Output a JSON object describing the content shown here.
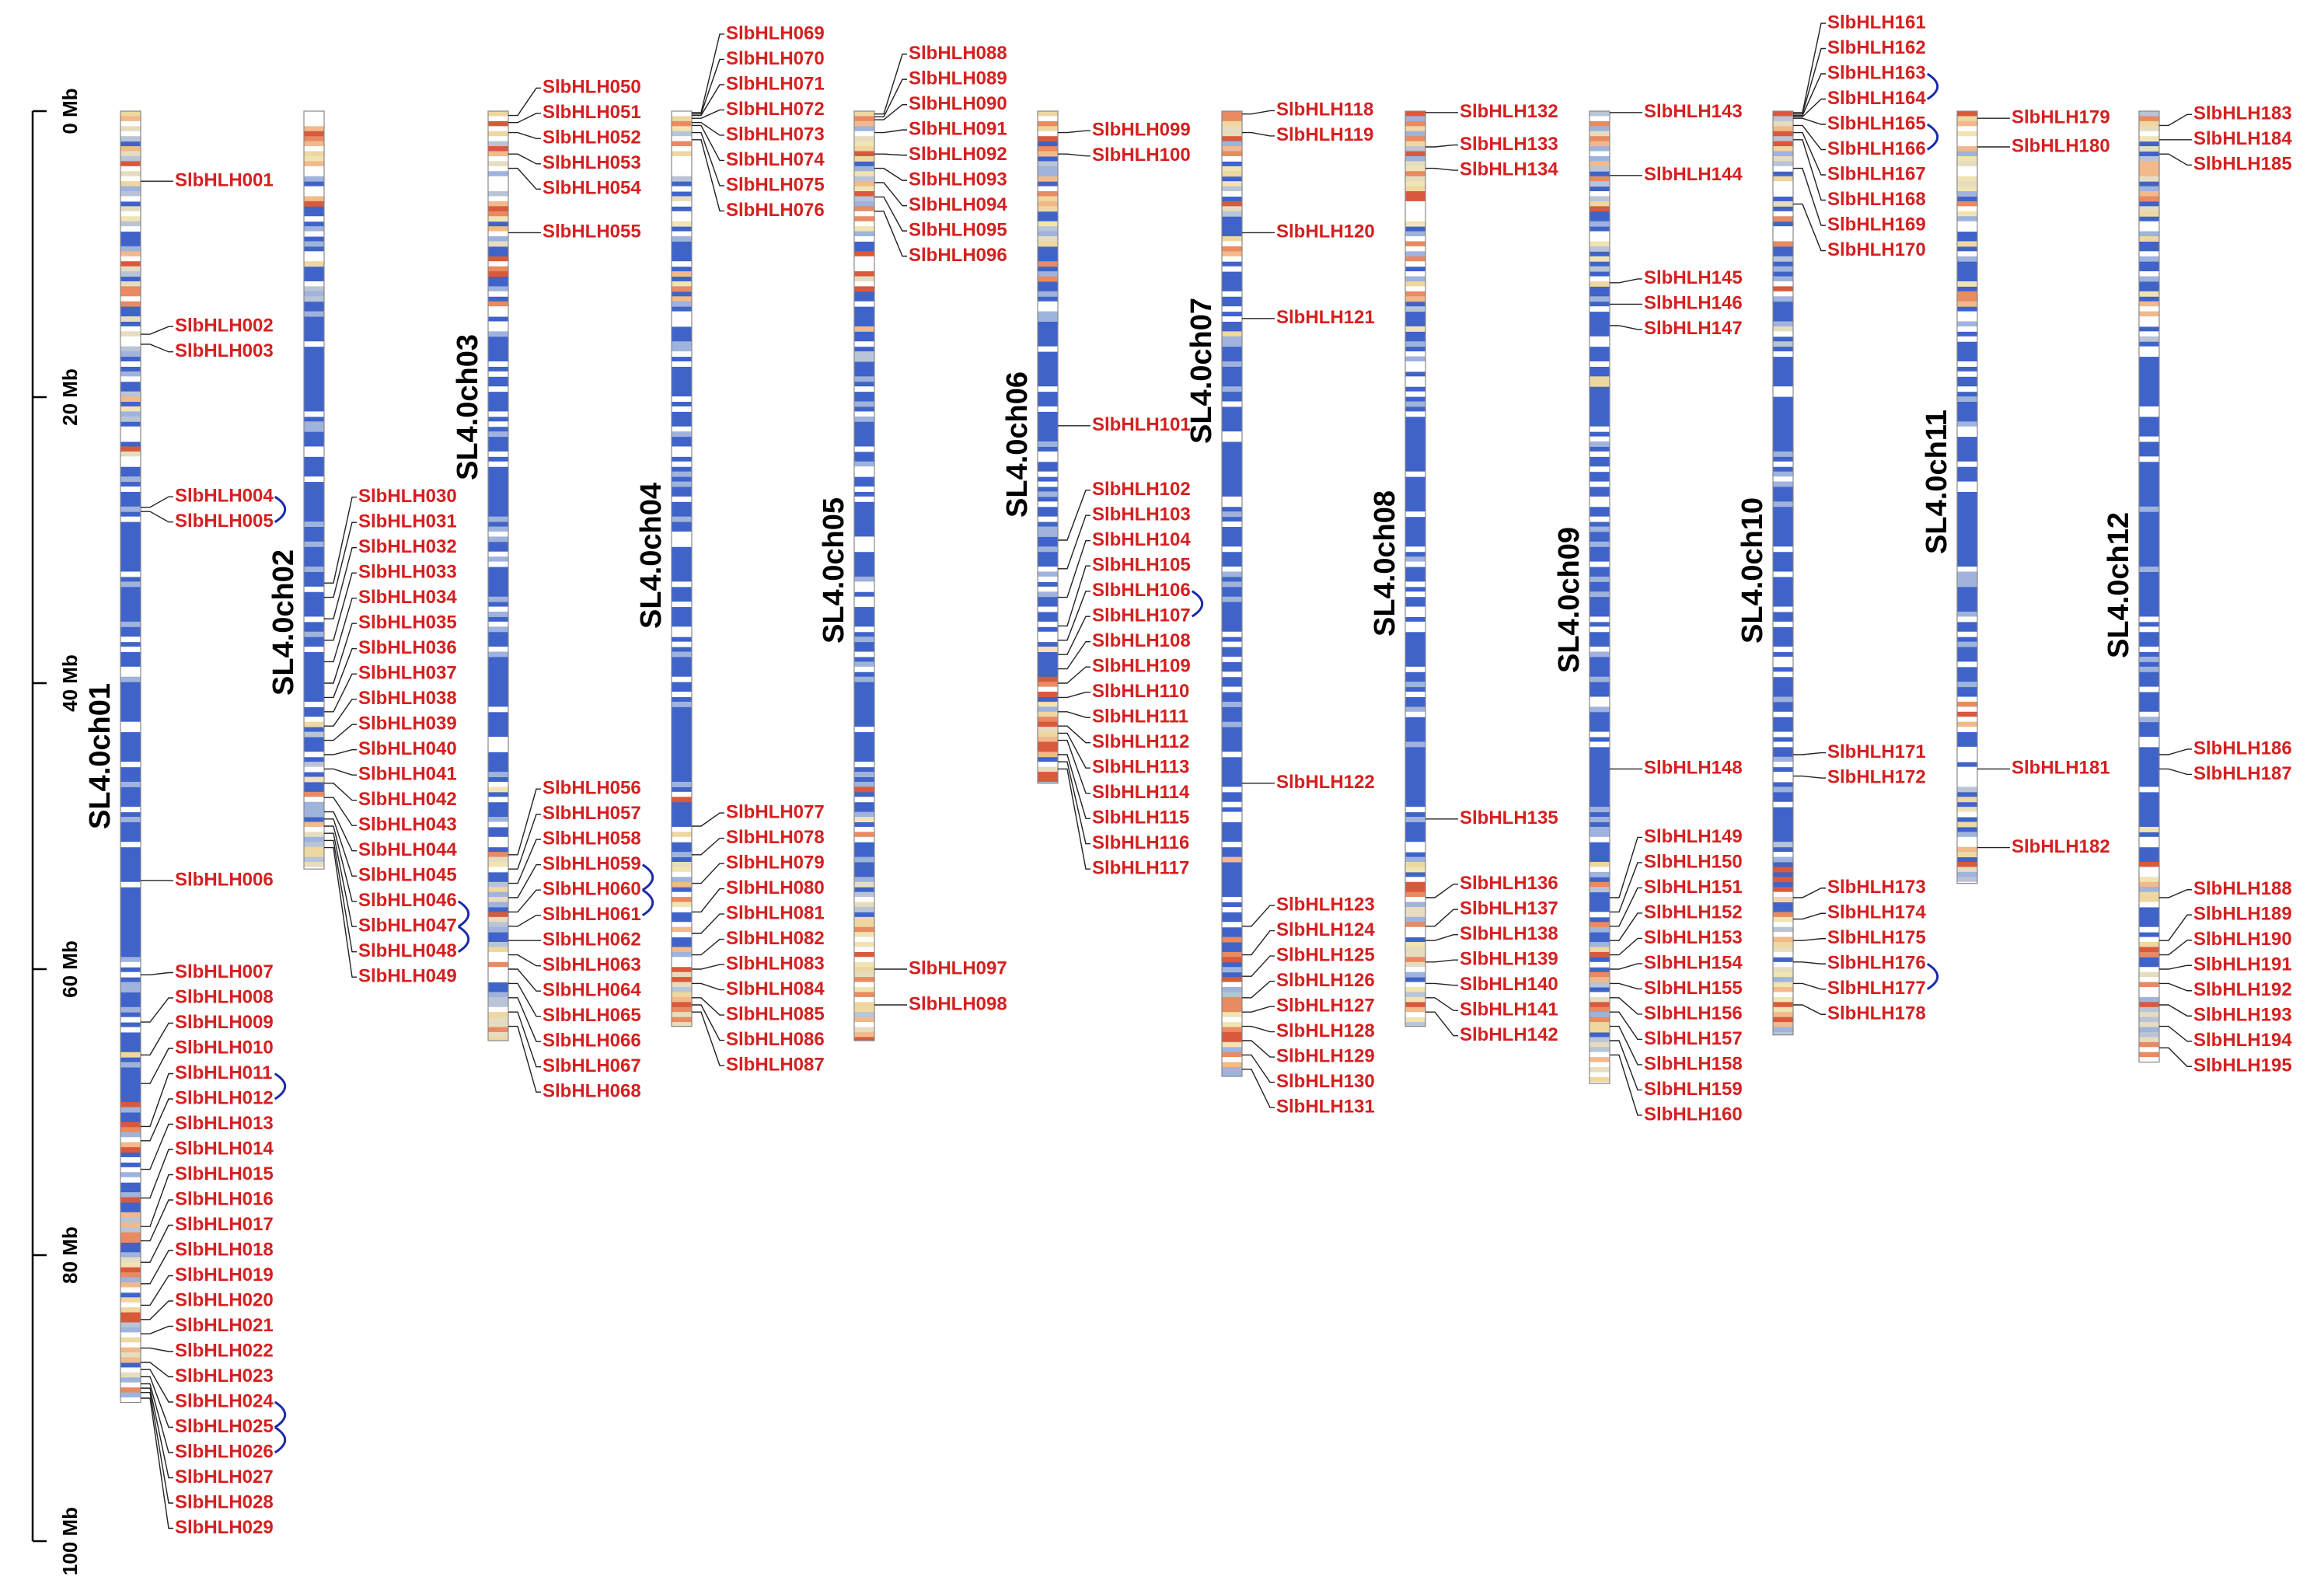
{
  "scale": {
    "ticks": [
      {
        "value": 0,
        "label": "0 Mb"
      },
      {
        "value": 20,
        "label": "20 Mb"
      },
      {
        "value": 40,
        "label": "40 Mb"
      },
      {
        "value": 60,
        "label": "60 Mb"
      },
      {
        "value": 80,
        "label": "80 Mb"
      },
      {
        "value": 100,
        "label": "100 Mb"
      }
    ]
  },
  "chromosomes": [
    {
      "name": "SL4.0ch01",
      "length": 90.3,
      "genes": [
        "SlbHLH001",
        "SlbHLH002",
        "SlbHLH003",
        "SlbHLH004",
        "SlbHLH005",
        "SlbHLH006",
        "SlbHLH007",
        "SlbHLH008",
        "SlbHLH009",
        "SlbHLH010",
        "SlbHLH011",
        "SlbHLH012",
        "SlbHLH013",
        "SlbHLH014",
        "SlbHLH015",
        "SlbHLH016",
        "SlbHLH017",
        "SlbHLH018",
        "SlbHLH019",
        "SlbHLH020",
        "SlbHLH021",
        "SlbHLH022",
        "SlbHLH023",
        "SlbHLH024",
        "SlbHLH025",
        "SlbHLH026",
        "SlbHLH027",
        "SlbHLH028",
        "SlbHLH029"
      ],
      "positions": [
        4.9,
        15.6,
        16.3,
        27.7,
        28,
        53.8,
        60.4,
        63.7,
        66,
        68,
        71,
        72,
        74,
        76,
        78,
        79,
        80.5,
        82,
        83.5,
        84.5,
        85.5,
        86.5,
        87.5,
        88,
        88.5,
        89,
        89.3,
        89.6,
        90
      ]
    },
    {
      "name": "SL4.0ch02",
      "length": 53,
      "genes": [
        "SlbHLH030",
        "SlbHLH031",
        "SlbHLH032",
        "SlbHLH033",
        "SlbHLH034",
        "SlbHLH035",
        "SlbHLH036",
        "SlbHLH037",
        "SlbHLH038",
        "SlbHLH039",
        "SlbHLH040",
        "SlbHLH041",
        "SlbHLH042",
        "SlbHLH043",
        "SlbHLH044",
        "SlbHLH045",
        "SlbHLH046",
        "SlbHLH047",
        "SlbHLH048",
        "SlbHLH049"
      ],
      "positions": [
        33,
        34,
        35.5,
        37,
        38.5,
        40,
        41,
        42,
        43,
        44,
        45,
        46,
        47,
        48,
        49,
        49.5,
        50,
        50.5,
        51,
        51.5
      ]
    },
    {
      "name": "SL4.0ch03",
      "length": 65,
      "genes": [
        "SlbHLH050",
        "SlbHLH051",
        "SlbHLH052",
        "SlbHLH053",
        "SlbHLH054",
        "SlbHLH055",
        "SlbHLH056",
        "SlbHLH057",
        "SlbHLH058",
        "SlbHLH059",
        "SlbHLH060",
        "SlbHLH061",
        "SlbHLH062",
        "SlbHLH063",
        "SlbHLH064",
        "SlbHLH065",
        "SlbHLH066",
        "SlbHLH067",
        "SlbHLH068"
      ],
      "positions": [
        0.3,
        0.8,
        1.5,
        3,
        4,
        8.5,
        52,
        53,
        54,
        55,
        56,
        57,
        58,
        59,
        60,
        61,
        62,
        63,
        64
      ]
    },
    {
      "name": "SL4.0ch04",
      "length": 64,
      "genes": [
        "SlbHLH069",
        "SlbHLH070",
        "SlbHLH071",
        "SlbHLH072",
        "SlbHLH073",
        "SlbHLH074",
        "SlbHLH075",
        "SlbHLH076",
        "SlbHLH077",
        "SlbHLH078",
        "SlbHLH079",
        "SlbHLH080",
        "SlbHLH081",
        "SlbHLH082",
        "SlbHLH083",
        "SlbHLH084",
        "SlbHLH085",
        "SlbHLH086",
        "SlbHLH087"
      ],
      "positions": [
        0.1,
        0.2,
        0.3,
        0.5,
        0.8,
        1,
        1.5,
        2,
        50,
        52,
        54,
        56,
        57.5,
        59,
        60,
        61,
        62,
        62.5,
        63
      ]
    },
    {
      "name": "SL4.0ch05",
      "length": 65,
      "genes": [
        "SlbHLH088",
        "SlbHLH089",
        "SlbHLH090",
        "SlbHLH091",
        "SlbHLH092",
        "SlbHLH093",
        "SlbHLH094",
        "SlbHLH095",
        "SlbHLH096",
        "SlbHLH097",
        "SlbHLH098"
      ],
      "positions": [
        0.2,
        0.4,
        0.6,
        1.5,
        3,
        4,
        5,
        6,
        7,
        60,
        62.5
      ]
    },
    {
      "name": "SL4.0ch06",
      "length": 47,
      "genes": [
        "SlbHLH099",
        "SlbHLH100",
        "SlbHLH101",
        "SlbHLH102",
        "SlbHLH103",
        "SlbHLH104",
        "SlbHLH105",
        "SlbHLH106",
        "SlbHLH107",
        "SlbHLH108",
        "SlbHLH109",
        "SlbHLH110",
        "SlbHLH111",
        "SlbHLH112",
        "SlbHLH113",
        "SlbHLH114",
        "SlbHLH115",
        "SlbHLH116",
        "SlbHLH117"
      ],
      "positions": [
        1.5,
        3,
        22,
        30,
        32,
        34,
        36,
        37,
        38,
        39,
        40,
        41,
        42,
        43,
        43.5,
        44,
        45,
        45.5,
        46
      ]
    },
    {
      "name": "SL4.0ch07",
      "length": 67.5,
      "genes": [
        "SlbHLH118",
        "SlbHLH119",
        "SlbHLH120",
        "SlbHLH121",
        "SlbHLH122",
        "SlbHLH123",
        "SlbHLH124",
        "SlbHLH125",
        "SlbHLH126",
        "SlbHLH127",
        "SlbHLH128",
        "SlbHLH129",
        "SlbHLH130",
        "SlbHLH131"
      ],
      "positions": [
        0.2,
        1.5,
        8.5,
        14.5,
        47,
        57,
        59,
        60.5,
        62,
        63,
        64,
        65,
        66,
        67
      ]
    },
    {
      "name": "SL4.0ch08",
      "length": 64,
      "genes": [
        "SlbHLH132",
        "SlbHLH133",
        "SlbHLH134",
        "SlbHLH135",
        "SlbHLH136",
        "SlbHLH137",
        "SlbHLH138",
        "SlbHLH139",
        "SlbHLH140",
        "SlbHLH141",
        "SlbHLH142"
      ],
      "positions": [
        0.1,
        2.5,
        4,
        49.5,
        55,
        57,
        58,
        59.5,
        61,
        62,
        63
      ]
    },
    {
      "name": "SL4.0ch09",
      "length": 68,
      "genes": [
        "SlbHLH143",
        "SlbHLH144",
        "SlbHLH145",
        "SlbHLH146",
        "SlbHLH147",
        "SlbHLH148",
        "SlbHLH149",
        "SlbHLH150",
        "SlbHLH151",
        "SlbHLH152",
        "SlbHLH153",
        "SlbHLH154",
        "SlbHLH155",
        "SlbHLH156",
        "SlbHLH157",
        "SlbHLH158",
        "SlbHLH159",
        "SlbHLH160"
      ],
      "positions": [
        0.1,
        4.5,
        12,
        13.5,
        15,
        46,
        55,
        56,
        57,
        58,
        59,
        60,
        61,
        62,
        63,
        64,
        65,
        66
      ]
    },
    {
      "name": "SL4.0ch10",
      "length": 64.6,
      "genes": [
        "SlbHLH161",
        "SlbHLH162",
        "SlbHLH163",
        "SlbHLH164",
        "SlbHLH165",
        "SlbHLH166",
        "SlbHLH167",
        "SlbHLH168",
        "SlbHLH169",
        "SlbHLH170",
        "SlbHLH171",
        "SlbHLH172",
        "SlbHLH173",
        "SlbHLH174",
        "SlbHLH175",
        "SlbHLH176",
        "SlbHLH177",
        "SlbHLH178"
      ],
      "positions": [
        0.1,
        0.2,
        0.3,
        0.4,
        0.5,
        1,
        1.5,
        2,
        4,
        6.5,
        45,
        46.5,
        55,
        56.5,
        58,
        59.5,
        61,
        62.5
      ]
    },
    {
      "name": "SL4.0ch11",
      "length": 54,
      "genes": [
        "SlbHLH179",
        "SlbHLH180",
        "SlbHLH181",
        "SlbHLH182"
      ],
      "positions": [
        0.5,
        2.5,
        46,
        51.5
      ]
    },
    {
      "name": "SL4.0ch12",
      "length": 66.5,
      "genes": [
        "SlbHLH183",
        "SlbHLH184",
        "SlbHLH185",
        "SlbHLH186",
        "SlbHLH187",
        "SlbHLH188",
        "SlbHLH189",
        "SlbHLH190",
        "SlbHLH191",
        "SlbHLH192",
        "SlbHLH193",
        "SlbHLH194",
        "SlbHLH195"
      ],
      "positions": [
        1,
        2,
        3,
        45,
        46,
        55,
        58,
        59,
        60,
        61,
        62.5,
        64,
        65.5
      ]
    }
  ]
}
